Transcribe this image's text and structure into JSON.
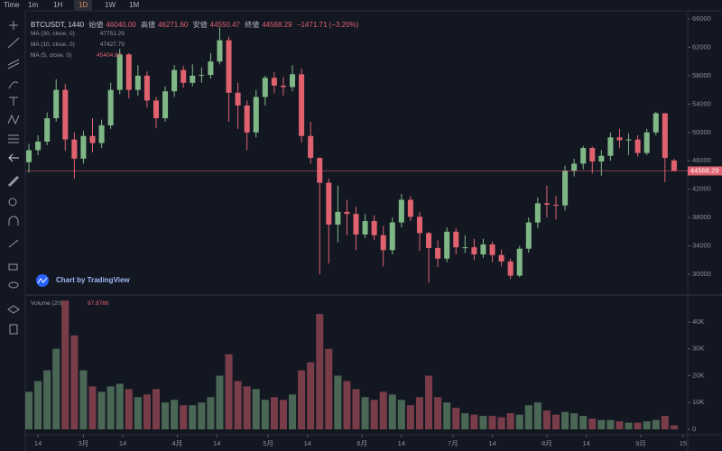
{
  "chart_data": {
    "type": "candlestick",
    "title": "BTCUSDT, 1440",
    "toolbar": [
      "Time",
      "1m",
      "1H",
      "1D",
      "1W",
      "1M"
    ],
    "legend": [
      {
        "label": "始値",
        "value": "46040.00"
      },
      {
        "label": "高値",
        "value": "46271.60"
      },
      {
        "label": "安値",
        "value": "44550.47"
      },
      {
        "label": "終値",
        "value": "44568.29"
      },
      {
        "label": "",
        "value": "−1471.71 (−3.20%)"
      }
    ],
    "indicators": [
      {
        "name": "MA (30, close, 0)",
        "value": "47751.29"
      },
      {
        "name": "MA (10, close, 0)",
        "value": "47427.79"
      },
      {
        "name": "MA (5, close, 0)",
        "value": "45404.82"
      }
    ],
    "volume_label": "Volume (20)",
    "volume_value": "87.8766",
    "watermark": "Chart by TradingView",
    "up_color": "#7fb886",
    "down_color": "#e0626f",
    "x": [
      -3,
      0,
      3,
      6,
      9,
      12,
      15,
      18,
      21,
      24,
      27,
      30,
      33,
      36,
      39,
      42,
      45,
      48,
      51,
      54,
      57,
      60,
      63,
      66,
      69,
      72,
      75,
      78,
      81,
      84,
      87,
      90,
      93,
      96,
      99,
      102,
      105,
      108,
      111,
      114,
      117,
      120,
      123,
      126,
      129,
      132,
      135,
      138,
      141,
      144,
      147,
      150,
      153,
      156,
      159,
      162,
      165,
      168,
      171,
      174,
      177,
      180,
      183,
      186,
      189,
      192,
      195,
      198,
      201,
      204,
      207,
      210
    ],
    "open": [
      45800,
      47500,
      48700,
      52000,
      56000,
      49000,
      46300,
      49500,
      48500,
      51000,
      56000,
      61000,
      56000,
      58000,
      54500,
      52000,
      55800,
      58800,
      57000,
      58000,
      58100,
      60000,
      63000,
      55600,
      53800,
      50000,
      55000,
      57700,
      56600,
      56400,
      58200,
      49500,
      46400,
      42900,
      37000,
      38800,
      38500,
      35600,
      37500,
      35500,
      33400,
      37300,
      40500,
      38100,
      35800,
      33700,
      32200,
      36000,
      33800,
      33800,
      32800,
      34200,
      32700,
      31800,
      29800,
      33600,
      37300,
      40000,
      39800,
      39700,
      44600,
      45600,
      47800,
      45900,
      46700,
      49300,
      48900,
      49000,
      47100,
      50000,
      52700,
      46040
    ],
    "high": [
      48400,
      49600,
      52800,
      57500,
      56800,
      50000,
      50200,
      52000,
      51800,
      57000,
      61800,
      61200,
      59500,
      58600,
      55000,
      56500,
      59500,
      59400,
      59600,
      59200,
      61200,
      64800,
      63500,
      57000,
      54500,
      56000,
      58000,
      58500,
      57800,
      59500,
      59000,
      51500,
      46500,
      43500,
      42500,
      40500,
      39500,
      38500,
      38300,
      36800,
      38000,
      41300,
      41000,
      38800,
      36000,
      34800,
      36600,
      36500,
      35500,
      35000,
      35000,
      34600,
      33500,
      32200,
      34000,
      38000,
      40800,
      42500,
      41000,
      45300,
      46300,
      48100,
      48000,
      47500,
      50000,
      50500,
      49900,
      49600,
      50500,
      52900,
      52700,
      46271.6
    ],
    "low": [
      44300,
      46800,
      48200,
      51500,
      47400,
      43500,
      45600,
      47200,
      47800,
      50500,
      55400,
      54800,
      55200,
      53500,
      50600,
      51500,
      55000,
      56300,
      56500,
      57000,
      57600,
      59600,
      51500,
      50500,
      47500,
      49300,
      53800,
      55500,
      55200,
      55800,
      48600,
      45600,
      30000,
      31500,
      34500,
      35500,
      33400,
      35100,
      34800,
      31100,
      32800,
      36600,
      37500,
      33300,
      28800,
      31000,
      31700,
      32800,
      33000,
      32000,
      32300,
      31700,
      31100,
      29300,
      29600,
      33000,
      36500,
      38000,
      37700,
      39000,
      43800,
      44800,
      44200,
      43900,
      46000,
      47800,
      46800,
      46600,
      46800,
      49600,
      43000,
      44550.47
    ],
    "close": [
      47500,
      48700,
      52000,
      56000,
      49000,
      46300,
      49500,
      48500,
      51000,
      56000,
      61000,
      56000,
      58000,
      54500,
      52000,
      55800,
      58800,
      57000,
      58000,
      58100,
      60000,
      63000,
      55600,
      53800,
      50000,
      55000,
      57700,
      56600,
      56400,
      58200,
      49500,
      46400,
      42900,
      37000,
      38800,
      38500,
      35600,
      37500,
      35500,
      33400,
      37300,
      40500,
      38100,
      35800,
      33700,
      32200,
      36000,
      33800,
      33800,
      32800,
      34200,
      32700,
      31800,
      29800,
      33600,
      37300,
      40000,
      39800,
      39700,
      44600,
      45600,
      47800,
      45900,
      46700,
      49300,
      48900,
      49000,
      47100,
      50000,
      52700,
      46400,
      44568.29
    ],
    "volume": [
      14000,
      18000,
      22000,
      30000,
      48000,
      35000,
      22000,
      16000,
      14000,
      16000,
      17000,
      15000,
      12000,
      13000,
      15000,
      10000,
      11000,
      9000,
      9000,
      10000,
      12000,
      20000,
      28000,
      18000,
      16000,
      15000,
      11000,
      12000,
      11000,
      13000,
      22000,
      25000,
      43000,
      30000,
      20000,
      18000,
      15000,
      12000,
      11000,
      14000,
      13000,
      11000,
      9000,
      12000,
      20000,
      12000,
      10000,
      8000,
      6000,
      5500,
      5000,
      5000,
      4500,
      6000,
      5500,
      9000,
      10000,
      7000,
      5500,
      6500,
      6000,
      5000,
      4000,
      3500,
      3500,
      3000,
      2500,
      2500,
      3000,
      3500,
      5000,
      1500
    ],
    "xlim": [
      -4.2,
      214.5
    ],
    "xticks": [
      {
        "value": 0,
        "label": "14"
      },
      {
        "value": 15,
        "label": "3月"
      },
      {
        "value": 28,
        "label": "14"
      },
      {
        "value": 46,
        "label": "4月"
      },
      {
        "value": 59,
        "label": "14"
      },
      {
        "value": 76,
        "label": "5月"
      },
      {
        "value": 89,
        "label": "14"
      },
      {
        "value": 107,
        "label": "6月"
      },
      {
        "value": 120,
        "label": "14"
      },
      {
        "value": 137,
        "label": "7月"
      },
      {
        "value": 150,
        "label": "14"
      },
      {
        "value": 168,
        "label": "8月"
      },
      {
        "value": 181,
        "label": "14"
      },
      {
        "value": 199,
        "label": "9月"
      },
      {
        "value": 213,
        "label": "15"
      }
    ],
    "ylim": [
      27330,
      67150
    ],
    "yticks": [
      30000,
      34000,
      38000,
      42000,
      46000,
      50000,
      54000,
      58000,
      62000,
      66000
    ],
    "y2lim": [
      -1345,
      49080
    ],
    "y2ticks": [
      0,
      {
        "value": 10000,
        "label": "10K"
      },
      {
        "value": 20000,
        "label": "20K"
      },
      {
        "value": 30000,
        "label": "30K"
      },
      {
        "value": 40000,
        "label": "40K"
      }
    ],
    "grid": false
  }
}
